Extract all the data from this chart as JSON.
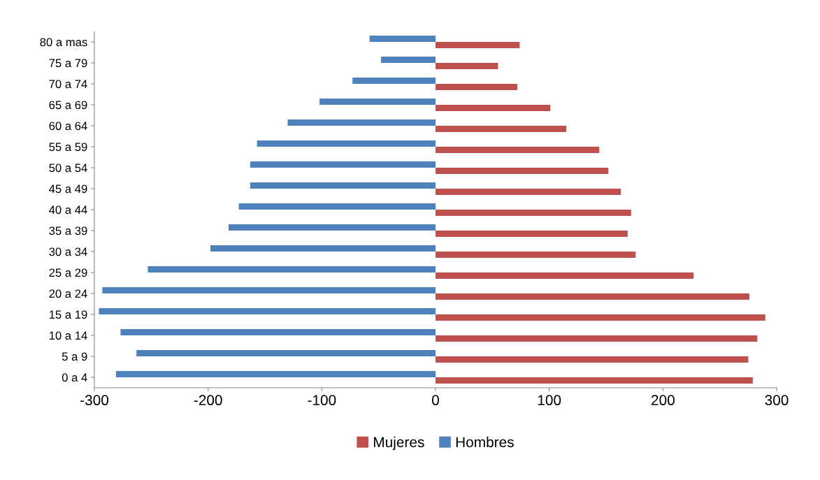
{
  "chart_data": {
    "type": "bar",
    "orientation": "horizontal",
    "categories": [
      "80 a mas",
      "75 a 79",
      "70 a 74",
      "65 a 69",
      "60 a 64",
      "55 a 59",
      "50 a 54",
      "45 a 49",
      "40 a 44",
      "35 a 39",
      "30 a 34",
      "25 a 29",
      "20 a 24",
      "15 a 19",
      "10 a 14",
      "5 a 9",
      "0 a 4"
    ],
    "series": [
      {
        "name": "Mujeres",
        "color": "#c0504d",
        "values": [
          74,
          55,
          72,
          101,
          115,
          144,
          152,
          163,
          172,
          169,
          176,
          227,
          276,
          290,
          283,
          275,
          279
        ]
      },
      {
        "name": "Hombres",
        "color": "#4f81bd",
        "values": [
          -58,
          -48,
          -73,
          -102,
          -130,
          -157,
          -163,
          -163,
          -173,
          -182,
          -198,
          -253,
          -293,
          -296,
          -277,
          -263,
          -281
        ]
      }
    ],
    "xlim": [
      -300,
      300
    ],
    "xticks": [
      -300,
      -200,
      -100,
      0,
      100,
      200,
      300
    ],
    "grid": false,
    "legend": "bottom"
  }
}
